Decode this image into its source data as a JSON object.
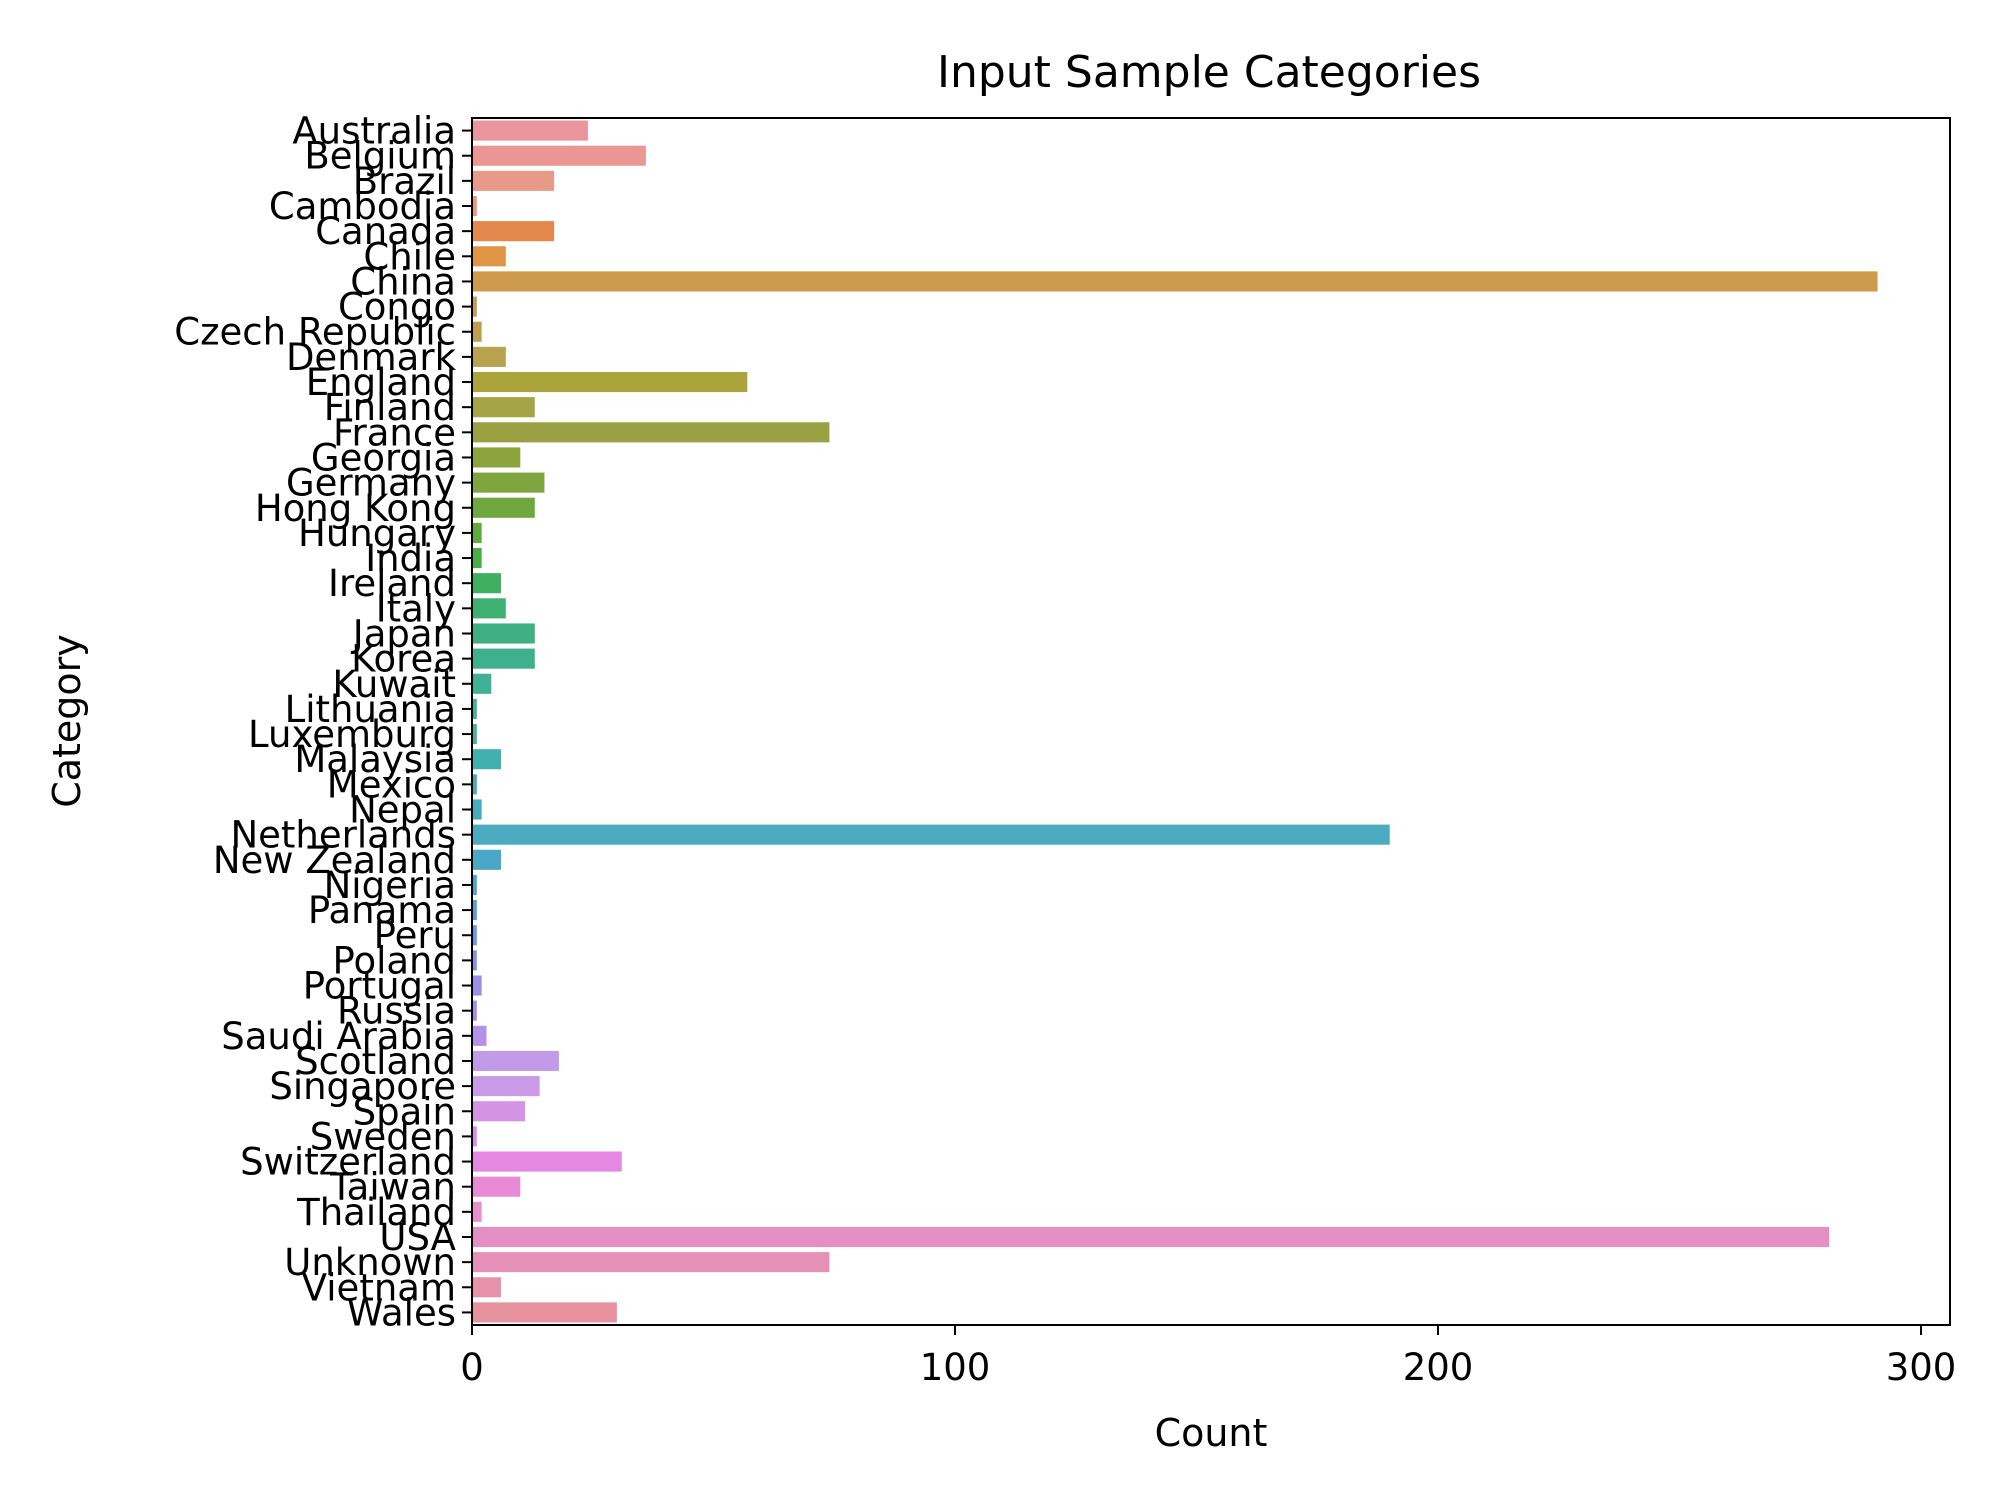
{
  "chart_data": {
    "type": "bar",
    "orientation": "horizontal",
    "title": "Input Sample Categories",
    "xlabel": "Count",
    "ylabel": "Category",
    "xlim": [
      0,
      306
    ],
    "xticks": [
      "0",
      "100",
      "200",
      "300"
    ],
    "grid": false,
    "legend": "none",
    "categories": [
      "Australia",
      "Belgium",
      "Brazil",
      "Cambodia",
      "Canada",
      "Chile",
      "China",
      "Congo",
      "Czech Republic",
      "Denmark",
      "England",
      "Finland",
      "France",
      "Georgia",
      "Germany",
      "Hong Kong",
      "Hungary",
      "India",
      "Ireland",
      "Italy",
      "Japan",
      "Korea",
      "Kuwait",
      "Lithuania",
      "Luxemburg",
      "Malaysia",
      "Mexico",
      "Nepal",
      "Netherlands",
      "New Zealand",
      "Nigeria",
      "Panama",
      "Peru",
      "Poland",
      "Portugal",
      "Russia",
      "Saudi Arabia",
      "Scotland",
      "Singapore",
      "Spain",
      "Sweden",
      "Switzerland",
      "Taiwan",
      "Thailand",
      "USA",
      "Unknown",
      "Vietnam",
      "Wales"
    ],
    "values": [
      24,
      36,
      17,
      1,
      17,
      7,
      291,
      1,
      2,
      7,
      57,
      13,
      74,
      10,
      15,
      13,
      2,
      2,
      6,
      7,
      13,
      13,
      4,
      1,
      1,
      6,
      1,
      2,
      190,
      6,
      1,
      1,
      1,
      1,
      2,
      1,
      3,
      18,
      14,
      11,
      1,
      31,
      10,
      2,
      281,
      74,
      6,
      30
    ],
    "colors": [
      "#e9969e",
      "#ea9793",
      "#e79a88",
      "#e69b7c",
      "#e2884c",
      "#df9544",
      "#ce9a4b",
      "#c69c4e",
      "#bf9f4f",
      "#b7a24f",
      "#aba43c",
      "#a5a446",
      "#9aa142",
      "#8da33b",
      "#7ea53f",
      "#6fa83f",
      "#5fab3d",
      "#4aad48",
      "#3fb060",
      "#3eb071",
      "#3fb081",
      "#3eb08b",
      "#40b195",
      "#42b09d",
      "#42b0a4",
      "#41b0ae",
      "#42afb7",
      "#45adc0",
      "#4aabc1",
      "#4aa8c6",
      "#4da3ce",
      "#5a9dd6",
      "#6e97de",
      "#8890e4",
      "#9c8ee5",
      "#a88ae8",
      "#b391ea",
      "#c29be8",
      "#cb9ae6",
      "#d493e5",
      "#dc8de4",
      "#e488e3",
      "#e98ad7",
      "#e98fcc",
      "#e48fc3",
      "#e590b7",
      "#e792ab",
      "#e7939f"
    ]
  }
}
